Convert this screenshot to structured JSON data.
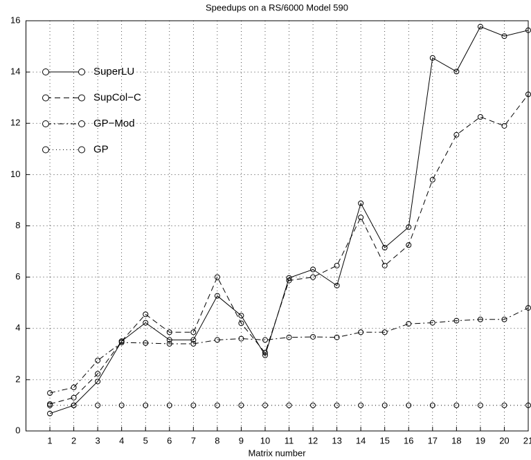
{
  "chart_data": {
    "type": "line",
    "title": "Speedups on a RS/6000 Model 590",
    "x_label": "Matrix number",
    "x": [
      1,
      2,
      3,
      4,
      5,
      6,
      7,
      8,
      9,
      10,
      11,
      12,
      13,
      14,
      15,
      16,
      17,
      18,
      19,
      20,
      21
    ],
    "xlim": [
      0,
      21
    ],
    "xticks": [
      1,
      2,
      3,
      4,
      5,
      6,
      7,
      8,
      9,
      10,
      11,
      12,
      13,
      14,
      15,
      16,
      17,
      18,
      19,
      20,
      21
    ],
    "ylim": [
      0,
      16
    ],
    "yticks": [
      0,
      2,
      4,
      6,
      8,
      10,
      12,
      14,
      16
    ],
    "grid": true,
    "legend": "upper-left",
    "series": [
      {
        "name": "SuperLU",
        "color": "#000000",
        "linestyle": "solid",
        "values": [
          0.68,
          1.0,
          1.93,
          3.5,
          4.22,
          3.55,
          3.55,
          5.27,
          4.5,
          2.95,
          5.97,
          6.3,
          5.67,
          8.88,
          7.15,
          7.95,
          14.55,
          14.02,
          15.77,
          15.4,
          15.63
        ]
      },
      {
        "name": "SupCol−C",
        "color": "#000000",
        "linestyle": "dashed",
        "values": [
          1.05,
          1.3,
          2.23,
          3.5,
          4.55,
          3.85,
          3.85,
          6.0,
          4.2,
          3.05,
          5.87,
          6.0,
          6.45,
          8.33,
          6.45,
          7.25,
          9.8,
          11.55,
          12.25,
          11.9,
          13.13
        ]
      },
      {
        "name": "GP−Mod",
        "color": "#000000",
        "linestyle": "dashdot",
        "values": [
          1.48,
          1.7,
          2.75,
          3.45,
          3.43,
          3.4,
          3.4,
          3.55,
          3.6,
          3.55,
          3.65,
          3.67,
          3.65,
          3.85,
          3.85,
          4.18,
          4.22,
          4.3,
          4.35,
          4.35,
          4.8
        ]
      },
      {
        "name": "GP",
        "color": "#000000",
        "linestyle": "dotted",
        "values": [
          1,
          1,
          1,
          1,
          1,
          1,
          1,
          1,
          1,
          1,
          1,
          1,
          1,
          1,
          1,
          1,
          1,
          1,
          1,
          1,
          1
        ]
      }
    ]
  }
}
